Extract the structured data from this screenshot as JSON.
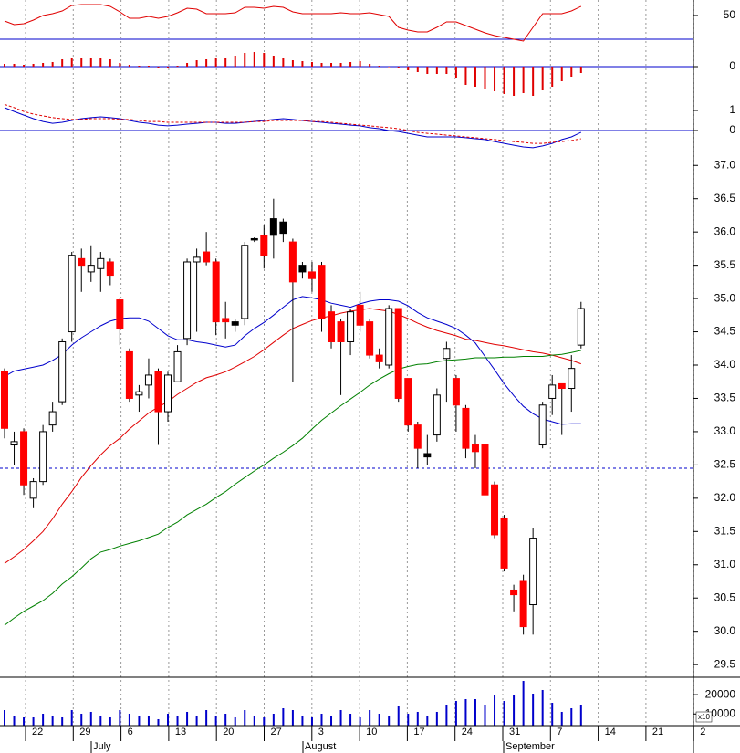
{
  "chart_data": [
    {
      "type": "line",
      "ylim": [
        28.5,
        63
      ],
      "yticks": [
        50
      ],
      "reference_line": 30,
      "reference_color": "#0000cc",
      "series": [
        {
          "color": "#e00000",
          "values": [
            45.4,
            42.3,
            43.1,
            46.1,
            50,
            51.5,
            53.8,
            58.4,
            59.2,
            59.2,
            59.2,
            57.6,
            53,
            47.7,
            47.7,
            49.2,
            47.7,
            49.2,
            52.3,
            56.1,
            55.3,
            51.5,
            51.5,
            51.5,
            52.3,
            56.9,
            56.9,
            56.1,
            57.6,
            56.9,
            53,
            51.5,
            51.5,
            51.5,
            51.5,
            52.3,
            51.5,
            51.5,
            52.3,
            50.7,
            49.2,
            40,
            37.7,
            36.2,
            36.2,
            40,
            44.6,
            44.6,
            41.5,
            38.5,
            35.4,
            33.1,
            31.6,
            30,
            28.5,
            40,
            51.5,
            51.5,
            51.5,
            53.8,
            57.6
          ]
        }
      ]
    },
    {
      "type": "bar",
      "ylim": [
        -0.37,
        0.23
      ],
      "yticks": [
        0
      ],
      "reference_line": 0,
      "reference_color": "#0000cc",
      "color": "#e00000",
      "values": [
        0.03,
        0.03,
        0.02,
        0.03,
        0.04,
        0.05,
        0.08,
        0.1,
        0.1,
        0.1,
        0.1,
        0.08,
        0.04,
        0.02,
        0.01,
        0.01,
        -0.01,
        -0.01,
        0.01,
        0.04,
        0.07,
        0.08,
        0.09,
        0.1,
        0.12,
        0.15,
        0.16,
        0.15,
        0.12,
        0.09,
        0.07,
        0.06,
        0.05,
        0.04,
        0.04,
        0.04,
        0.05,
        0.06,
        0.03,
        0.01,
        0.0,
        -0.02,
        -0.04,
        -0.06,
        -0.08,
        -0.08,
        -0.08,
        -0.12,
        -0.2,
        -0.22,
        -0.24,
        -0.27,
        -0.3,
        -0.32,
        -0.29,
        -0.32,
        -0.26,
        -0.22,
        -0.16,
        -0.11,
        -0.07
      ]
    },
    {
      "type": "line",
      "ylim": [
        -1,
        1.5
      ],
      "yticks": [
        1,
        0
      ],
      "reference_line": 0,
      "reference_color": "#0000cc",
      "series": [
        {
          "color": "#0000cc",
          "values": [
            1.14,
            0.95,
            0.77,
            0.59,
            0.45,
            0.36,
            0.41,
            0.5,
            0.59,
            0.64,
            0.68,
            0.64,
            0.59,
            0.5,
            0.41,
            0.36,
            0.27,
            0.23,
            0.27,
            0.32,
            0.36,
            0.41,
            0.41,
            0.36,
            0.36,
            0.41,
            0.45,
            0.5,
            0.55,
            0.59,
            0.55,
            0.5,
            0.45,
            0.41,
            0.36,
            0.32,
            0.27,
            0.23,
            0.14,
            0.09,
            0,
            -0.05,
            -0.14,
            -0.23,
            -0.32,
            -0.32,
            -0.32,
            -0.32,
            -0.36,
            -0.41,
            -0.45,
            -0.55,
            -0.64,
            -0.73,
            -0.82,
            -0.86,
            -0.77,
            -0.64,
            -0.45,
            -0.32,
            -0.09
          ]
        },
        {
          "color": "#e00000",
          "dashed": true,
          "values": [
            1.3,
            1.14,
            0.95,
            0.82,
            0.73,
            0.64,
            0.59,
            0.55,
            0.55,
            0.59,
            0.59,
            0.59,
            0.55,
            0.55,
            0.5,
            0.45,
            0.45,
            0.41,
            0.41,
            0.41,
            0.41,
            0.41,
            0.41,
            0.41,
            0.41,
            0.41,
            0.45,
            0.45,
            0.5,
            0.5,
            0.5,
            0.5,
            0.45,
            0.45,
            0.41,
            0.36,
            0.32,
            0.27,
            0.23,
            0.18,
            0.14,
            0.09,
            0.0,
            -0.09,
            -0.14,
            -0.18,
            -0.23,
            -0.27,
            -0.32,
            -0.36,
            -0.41,
            -0.45,
            -0.5,
            -0.55,
            -0.59,
            -0.64,
            -0.64,
            -0.59,
            -0.55,
            -0.5,
            -0.41
          ]
        }
      ]
    },
    {
      "type": "candlestick",
      "ylim": [
        29.31,
        37.36
      ],
      "yticks": [
        {
          "value": 37,
          "label": "37.0"
        },
        36.5,
        {
          "value": 36,
          "label": "36.0"
        },
        35.5,
        {
          "value": 35,
          "label": "35.0"
        },
        34.5,
        {
          "value": 34,
          "label": "34.0"
        },
        33.5,
        {
          "value": 33,
          "label": "33.0"
        },
        32.5,
        {
          "value": 32,
          "label": "32.0"
        },
        31.5,
        {
          "value": 31,
          "label": "31.0"
        },
        30.5,
        {
          "value": 30,
          "label": "30.0"
        },
        29.5
      ],
      "reference_line": 32.45,
      "reference_color": "#0000cc",
      "reference_dashed": true,
      "open": [
        33.9,
        32.8,
        33.0,
        32.0,
        32.25,
        33.1,
        33.45,
        34.5,
        35.6,
        35.4,
        35.45,
        35.55,
        34.98,
        34.2,
        33.55,
        33.7,
        33.9,
        33.3,
        33.75,
        34.4,
        35.55,
        35.7,
        35.55,
        34.7,
        34.65,
        34.7,
        35.9,
        35.95,
        35.95,
        36.15,
        35.85,
        35.5,
        35.4,
        35.5,
        34.8,
        34.65,
        34.35,
        34.9,
        34.65,
        34.15,
        34.0,
        34.85,
        33.8,
        33.1,
        32.67,
        32.95,
        34.1,
        33.8,
        33.35,
        32.8,
        32.8,
        32.2,
        31.7,
        30.62,
        30.75,
        30.4,
        32.8,
        33.5,
        33.72,
        33.65,
        34.3
      ],
      "high": [
        33.95,
        33.0,
        33.05,
        32.3,
        33.1,
        33.45,
        34.4,
        35.7,
        35.75,
        35.8,
        35.7,
        35.6,
        35.0,
        34.25,
        33.7,
        34.1,
        33.95,
        33.9,
        34.3,
        35.6,
        35.75,
        36.0,
        35.6,
        34.95,
        34.7,
        35.85,
        35.92,
        36.1,
        36.5,
        36.2,
        35.9,
        35.55,
        35.55,
        35.55,
        34.9,
        34.7,
        34.85,
        35.1,
        34.7,
        34.25,
        34.9,
        34.85,
        33.8,
        33.15,
        32.95,
        33.65,
        34.35,
        33.85,
        33.4,
        32.95,
        32.85,
        32.25,
        31.75,
        30.7,
        30.85,
        31.55,
        33.45,
        33.85,
        33.7,
        34.15,
        34.95
      ],
      "low": [
        32.9,
        32.5,
        32.05,
        31.85,
        32.2,
        33.0,
        33.4,
        34.35,
        35.1,
        35.25,
        35.1,
        35.2,
        34.3,
        33.45,
        33.3,
        33.5,
        32.8,
        33.15,
        33.75,
        34.3,
        34.5,
        35.5,
        34.45,
        34.4,
        34.5,
        34.6,
        35.85,
        35.45,
        35.6,
        35.85,
        33.75,
        35.3,
        35.1,
        34.5,
        34.25,
        33.55,
        34.15,
        34.5,
        34.1,
        33.95,
        33.95,
        33.45,
        33.0,
        32.45,
        32.5,
        32.85,
        33.45,
        33.0,
        32.6,
        32.45,
        31.95,
        31.4,
        30.9,
        30.3,
        29.95,
        29.95,
        32.75,
        33.25,
        32.95,
        33.3,
        34.25
      ],
      "close": [
        33.05,
        32.85,
        32.2,
        32.25,
        33.0,
        33.3,
        34.35,
        35.65,
        35.5,
        35.5,
        35.6,
        35.35,
        34.55,
        33.5,
        33.6,
        33.85,
        33.3,
        33.85,
        34.2,
        35.55,
        35.62,
        35.55,
        34.65,
        34.65,
        34.6,
        35.8,
        35.88,
        35.65,
        36.2,
        35.98,
        35.25,
        35.4,
        35.3,
        34.7,
        34.35,
        34.35,
        34.8,
        34.6,
        34.15,
        34.05,
        34.85,
        33.5,
        33.1,
        32.75,
        32.62,
        33.55,
        34.25,
        33.4,
        32.75,
        32.7,
        32.05,
        31.45,
        30.95,
        30.55,
        30.07,
        31.4,
        33.4,
        33.7,
        33.65,
        33.95,
        34.85
      ],
      "fills": [
        "#ff0000",
        "#ffffff",
        "#ff0000",
        "#ffffff",
        "#ffffff",
        "#ffffff",
        "#ffffff",
        "#ffffff",
        "#ff0000",
        "#ffffff",
        "#ffffff",
        "#ff0000",
        "#ff0000",
        "#ff0000",
        "#ffffff",
        "#ffffff",
        "#ff0000",
        "#ffffff",
        "#ffffff",
        "#ffffff",
        "#ffffff",
        "#ff0000",
        "#ff0000",
        "#ff0000",
        "#000000",
        "#ffffff",
        "#000000",
        "#ff0000",
        "#000000",
        "#000000",
        "#ff0000",
        "#000000",
        "#ff0000",
        "#ff0000",
        "#ff0000",
        "#ff0000",
        "#ffffff",
        "#ff0000",
        "#ff0000",
        "#ff0000",
        "#ffffff",
        "#ff0000",
        "#ff0000",
        "#ff0000",
        "#000000",
        "#ffffff",
        "#ffffff",
        "#ff0000",
        "#ff0000",
        "#ff0000",
        "#ff0000",
        "#ff0000",
        "#ff0000",
        "#ff0000",
        "#ff0000",
        "#ffffff",
        "#ffffff",
        "#ffffff",
        "#ff0000",
        "#ffffff",
        "#ffffff"
      ],
      "overlays": [
        {
          "color": "#0000cc",
          "values": [
            33.83,
            33.91,
            33.94,
            33.97,
            34.0,
            34.07,
            34.16,
            34.3,
            34.41,
            34.5,
            34.59,
            34.66,
            34.7,
            34.71,
            34.71,
            34.66,
            34.55,
            34.44,
            34.38,
            34.38,
            34.35,
            34.33,
            34.3,
            34.27,
            34.3,
            34.44,
            34.55,
            34.64,
            34.75,
            34.87,
            34.98,
            35.03,
            35.01,
            34.98,
            34.93,
            34.9,
            34.87,
            34.92,
            34.96,
            34.98,
            34.98,
            34.96,
            34.89,
            34.79,
            34.71,
            34.66,
            34.61,
            34.55,
            34.45,
            34.33,
            34.13,
            33.93,
            33.72,
            33.54,
            33.38,
            33.27,
            33.19,
            33.15,
            33.11,
            33.12,
            33.12
          ]
        },
        {
          "color": "#e00000",
          "values": [
            31.02,
            31.12,
            31.23,
            31.36,
            31.5,
            31.69,
            31.91,
            32.1,
            32.31,
            32.49,
            32.65,
            32.79,
            32.9,
            33.04,
            33.16,
            33.28,
            33.37,
            33.45,
            33.56,
            33.65,
            33.74,
            33.81,
            33.85,
            33.9,
            33.97,
            34.05,
            34.13,
            34.23,
            34.34,
            34.45,
            34.55,
            34.61,
            34.67,
            34.71,
            34.74,
            34.78,
            34.81,
            34.83,
            34.85,
            34.83,
            34.81,
            34.76,
            34.7,
            34.63,
            34.57,
            34.52,
            34.48,
            34.44,
            34.39,
            34.37,
            34.34,
            34.31,
            34.29,
            34.26,
            34.23,
            34.2,
            34.18,
            34.15,
            34.11,
            34.07,
            34.02
          ]
        },
        {
          "color": "#008000",
          "values": [
            30.09,
            30.2,
            30.3,
            30.38,
            30.46,
            30.57,
            30.71,
            30.82,
            30.95,
            31.09,
            31.19,
            31.23,
            31.28,
            31.32,
            31.36,
            31.41,
            31.46,
            31.56,
            31.64,
            31.75,
            31.83,
            31.91,
            32.01,
            32.1,
            32.21,
            32.31,
            32.41,
            32.5,
            32.6,
            32.69,
            32.79,
            32.9,
            33.04,
            33.17,
            33.28,
            33.39,
            33.49,
            33.59,
            33.7,
            33.79,
            33.87,
            33.94,
            33.98,
            34.01,
            34.02,
            34.05,
            34.07,
            34.08,
            34.09,
            34.11,
            34.11,
            34.11,
            34.12,
            34.12,
            34.13,
            34.13,
            34.13,
            34.15,
            34.16,
            34.19,
            34.22
          ]
        }
      ]
    },
    {
      "type": "bar",
      "ylim": [
        4000,
        29000
      ],
      "yticks": [
        20000,
        10000
      ],
      "color": "#0000cc",
      "unit_label": "x10",
      "values": [
        12020,
        9190,
        8250,
        8250,
        10130,
        9190,
        8250,
        12020,
        10130,
        11080,
        9190,
        8250,
        12020,
        10130,
        9190,
        9190,
        7300,
        10130,
        9190,
        11080,
        9190,
        12020,
        9190,
        10130,
        8250,
        12020,
        9190,
        8250,
        10130,
        12960,
        12020,
        9190,
        8250,
        10130,
        9190,
        12020,
        10130,
        8250,
        12020,
        10130,
        9190,
        13910,
        10130,
        11080,
        9190,
        11080,
        14850,
        16740,
        17680,
        17680,
        14850,
        19570,
        16740,
        19570,
        27110,
        20510,
        22400,
        15790,
        11080,
        12960,
        14850
      ]
    }
  ],
  "x_axis": {
    "day_labels": [
      "22",
      "29",
      "6",
      "13",
      "20",
      "27",
      "3",
      "10",
      "17",
      "24",
      "31",
      "7",
      "14",
      "21",
      "2"
    ],
    "month_labels": [
      "July",
      "August",
      "September"
    ]
  }
}
